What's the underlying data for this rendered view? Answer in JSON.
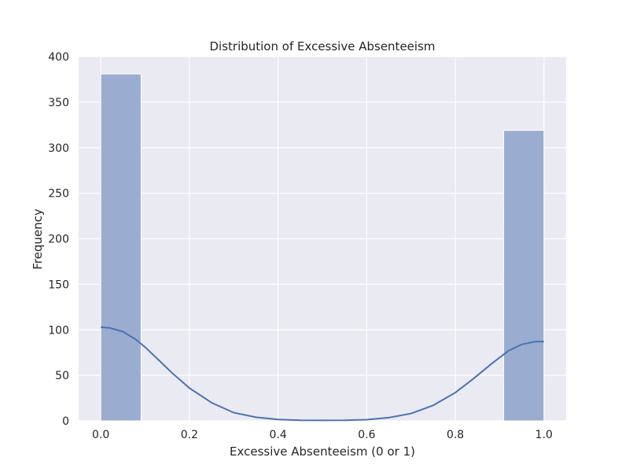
{
  "chart_data": {
    "type": "bar",
    "title": "Distribution of Excessive Absenteeism",
    "xlabel": "Excessive Absenteeism (0 or 1)",
    "ylabel": "Frequency",
    "xlim": [
      -0.05,
      1.05
    ],
    "ylim": [
      0,
      400
    ],
    "xticks": [
      0.0,
      0.2,
      0.4,
      0.6,
      0.8,
      1.0
    ],
    "xtick_labels": [
      "0.0",
      "0.2",
      "0.4",
      "0.6",
      "0.8",
      "1.0"
    ],
    "yticks": [
      0,
      50,
      100,
      150,
      200,
      250,
      300,
      350,
      400
    ],
    "ytick_labels": [
      "0",
      "50",
      "100",
      "150",
      "200",
      "250",
      "300",
      "350",
      "400"
    ],
    "grid": true,
    "bars": [
      {
        "x_start": 0.0,
        "x_end": 0.0909,
        "value": 381
      },
      {
        "x_start": 0.9091,
        "x_end": 1.0,
        "value": 319
      }
    ],
    "kde_curve": {
      "x": [
        0.0,
        0.02,
        0.05,
        0.08,
        0.1,
        0.13,
        0.16,
        0.2,
        0.25,
        0.3,
        0.35,
        0.4,
        0.45,
        0.5,
        0.55,
        0.6,
        0.65,
        0.7,
        0.75,
        0.8,
        0.84,
        0.88,
        0.92,
        0.95,
        0.98,
        1.0
      ],
      "y": [
        103,
        102,
        98,
        89,
        81,
        67,
        53,
        36,
        20,
        9,
        4,
        1.5,
        0.6,
        0.5,
        0.6,
        1.3,
        3.5,
        8,
        17,
        31,
        46,
        62,
        77,
        84,
        87,
        87
      ]
    },
    "colors": {
      "background": "#eaeaf2",
      "grid": "#ffffff",
      "bar": "#9aadd0",
      "bar_edge": "#ffffff",
      "line": "#4c72b0"
    }
  }
}
